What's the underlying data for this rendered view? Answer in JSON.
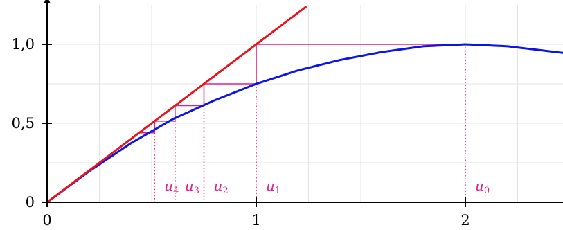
{
  "chart_data": {
    "type": "line",
    "title": "",
    "xlabel": "",
    "ylabel": "",
    "xlim": [
      0,
      2.47
    ],
    "ylim": [
      0,
      1.25
    ],
    "x_ticks": [
      0,
      1,
      2
    ],
    "x_tick_labels": [
      "0",
      "1",
      "2"
    ],
    "y_ticks": [
      0,
      0.5,
      1
    ],
    "y_tick_labels": [
      "0",
      "0,5",
      "1,0"
    ],
    "grid": true,
    "colors": {
      "curve": "#0a14e6",
      "diagonal": "#e8141c",
      "cobweb": "#e0218a",
      "grid": "#e3e3e3",
      "axis": "#000000"
    },
    "series": [
      {
        "role": "curve",
        "x": [
          0,
          0.2,
          0.4,
          0.6,
          0.8,
          1.0,
          1.2,
          1.4,
          1.6,
          1.8,
          2.0,
          2.2,
          2.47
        ],
        "y": [
          0,
          0.1951,
          0.3731,
          0.5258,
          0.6451,
          0.75,
          0.8351,
          0.9008,
          0.9511,
          0.9877,
          1.0,
          0.9877,
          0.9455
        ]
      },
      {
        "role": "diagonal",
        "x": [
          0,
          1.24
        ],
        "y": [
          0,
          1.24
        ]
      }
    ],
    "cobweb": {
      "points": [
        {
          "x": 2.0,
          "y": 1.0
        },
        {
          "x": 1.0,
          "y": 0.75
        },
        {
          "x": 0.75,
          "y": 0.612
        },
        {
          "x": 0.612,
          "y": 0.514
        },
        {
          "x": 0.514,
          "y": 0.44
        }
      ],
      "drop_lines_x": [
        2.0,
        1.0,
        0.75,
        0.612,
        0.514
      ]
    },
    "annotations": [
      {
        "base": "u",
        "sub": "0",
        "x": 2.0
      },
      {
        "base": "u",
        "sub": "1",
        "x": 1.0
      },
      {
        "base": "u",
        "sub": "2",
        "x": 0.75
      },
      {
        "base": "u",
        "sub": "3",
        "x": 0.612
      },
      {
        "base": "u",
        "sub": "4",
        "x": 0.514
      }
    ]
  }
}
